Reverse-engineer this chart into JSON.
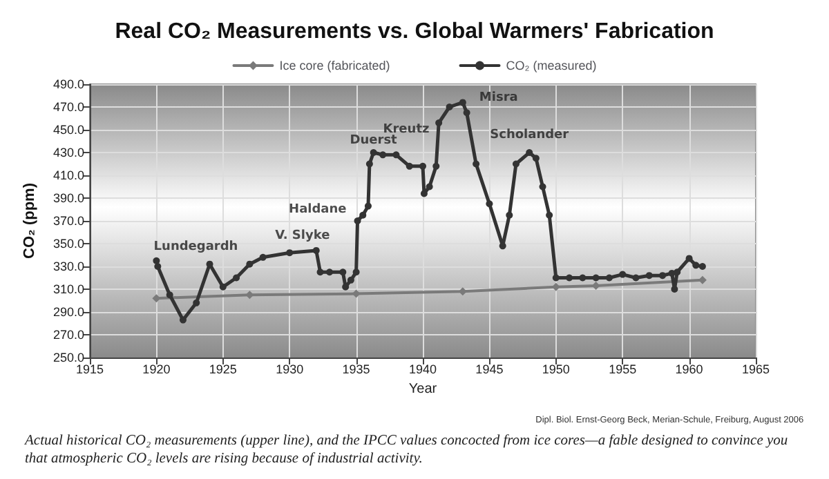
{
  "chart_data": {
    "type": "line",
    "title": "Real CO₂ Measurements vs. Global Warmers' Fabrication",
    "xlabel": "Year",
    "ylabel": "CO₂ (ppm)",
    "xlim": [
      1915,
      1965
    ],
    "xticks": [
      1915,
      1920,
      1925,
      1930,
      1935,
      1940,
      1945,
      1950,
      1955,
      1960,
      1965
    ],
    "ylim": [
      250,
      490
    ],
    "yticks": [
      {
        "value": 250,
        "label": "250.0"
      },
      {
        "value": 270,
        "label": "270.0"
      },
      {
        "value": 290,
        "label": "290.0"
      },
      {
        "value": 310,
        "label": "310.0"
      },
      {
        "value": 330,
        "label": "330.0"
      },
      {
        "value": 350,
        "label": "350.0"
      },
      {
        "value": 370,
        "label": "370.0"
      },
      {
        "value": 390,
        "label": "390.0"
      },
      {
        "value": 410,
        "label": "410.0"
      },
      {
        "value": 430,
        "label": "430.0"
      },
      {
        "value": 450,
        "label": "450.0"
      },
      {
        "value": 470,
        "label": "470.0"
      },
      {
        "value": 490,
        "label": "490.0"
      }
    ],
    "grid": true,
    "legend": "top",
    "marker": "circle",
    "line_style": "solid",
    "series": [
      {
        "name": "Ice core (fabricated)",
        "color": "#7a7a7a",
        "marker": "diamond",
        "x": [
          1920,
          1927,
          1935,
          1943,
          1950,
          1953,
          1961
        ],
        "values": [
          302,
          305,
          306,
          308,
          312,
          313,
          318
        ]
      },
      {
        "name": "CO₂ (measured)",
        "color": "#333333",
        "x": [
          1920,
          1920.1,
          1921,
          1922,
          1923,
          1924,
          1925,
          1926,
          1927,
          1928,
          1930,
          1932,
          1932.3,
          1933,
          1934,
          1934.2,
          1934.6,
          1935,
          1935.1,
          1935.5,
          1935.9,
          1936,
          1936.3,
          1937,
          1938,
          1939,
          1940,
          1940.1,
          1940.5,
          1941,
          1941.2,
          1942,
          1943,
          1943.3,
          1944,
          1945,
          1946,
          1946.5,
          1947,
          1948,
          1948.5,
          1949,
          1949.5,
          1950,
          1951,
          1952,
          1953,
          1954,
          1955,
          1956,
          1957,
          1958,
          1958.7,
          1958.9,
          1959.1,
          1960,
          1960.5,
          1961
        ],
        "values": [
          335,
          330,
          305,
          283,
          298,
          332,
          312,
          320,
          332,
          338,
          342,
          344,
          325,
          325,
          325,
          312,
          318,
          325,
          370,
          375,
          383,
          420,
          430,
          428,
          428,
          418,
          418,
          394,
          400,
          418,
          456,
          470,
          474,
          465,
          420,
          385,
          348,
          375,
          420,
          430,
          425,
          400,
          375,
          320,
          320,
          320,
          320,
          320,
          323,
          320,
          322,
          322,
          324,
          310,
          325,
          337,
          331,
          330
        ]
      }
    ],
    "annotations": [
      {
        "text": "Lundegardh",
        "x": 1924,
        "y": 332
      },
      {
        "text": "V. Slyke",
        "x": 1932,
        "y": 344
      },
      {
        "text": "Haldane",
        "x": 1935.1,
        "y": 370
      },
      {
        "text": "Duerst",
        "x": 1936.3,
        "y": 430
      },
      {
        "text": "Kreutz",
        "x": 1940,
        "y": 418
      },
      {
        "text": "Misra",
        "x": 1943,
        "y": 474
      },
      {
        "text": "Scholander",
        "x": 1948,
        "y": 430
      },
      "Dipl. Biol. Ernst-Georg Beck, Merian-Schule, Freiburg, August 2006",
      "Actual historical CO₂ measurements (upper line), and the IPCC values concocted from ice cores—a fable designed to convince you that atmospheric CO₂ levels are rising because of industrial activity."
    ]
  }
}
